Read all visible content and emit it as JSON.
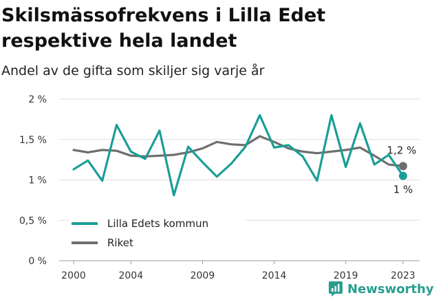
{
  "header": {
    "title": "Skilsmässofrekvens i Lilla Edet respektive hela landet",
    "subtitle": "Andel av de gifta som skiljer sig varje år"
  },
  "brand": {
    "name": "Newsworthy",
    "icon": "newsworthy-logo-icon"
  },
  "colors": {
    "lilla_edet": "#1a9e96",
    "riket": "#6e6e6e",
    "grid": "#dddddd",
    "brand": "#2a9d8f"
  },
  "chart_data": {
    "type": "line",
    "title": "Skilsmässofrekvens i Lilla Edet respektive hela landet",
    "subtitle": "Andel av de gifta som skiljer sig varje år",
    "xlabel": "",
    "ylabel": "",
    "x_ticks": [
      2000,
      2004,
      2009,
      2014,
      2019,
      2023
    ],
    "y_ticks": [
      0,
      0.5,
      1,
      1.5,
      2
    ],
    "y_tick_labels": [
      "0 %",
      "0,5 %",
      "1 %",
      "1,5 %",
      "2 %"
    ],
    "ylim": [
      0,
      2
    ],
    "xlim": [
      2000,
      2023
    ],
    "grid": true,
    "legend_position": "bottom-left",
    "x": [
      2000,
      2001,
      2002,
      2003,
      2004,
      2005,
      2006,
      2007,
      2008,
      2009,
      2010,
      2011,
      2012,
      2013,
      2014,
      2015,
      2016,
      2017,
      2018,
      2019,
      2020,
      2021,
      2022,
      2023
    ],
    "series": [
      {
        "name": "Lilla Edets kommun",
        "color": "#1a9e96",
        "values": [
          1.13,
          1.24,
          0.99,
          1.68,
          1.35,
          1.26,
          1.61,
          0.81,
          1.41,
          1.22,
          1.04,
          1.2,
          1.41,
          1.8,
          1.4,
          1.43,
          1.29,
          0.99,
          1.8,
          1.16,
          1.7,
          1.19,
          1.31,
          1.05
        ],
        "end_label": "1 %"
      },
      {
        "name": "Riket",
        "color": "#6e6e6e",
        "values": [
          1.37,
          1.34,
          1.37,
          1.36,
          1.3,
          1.29,
          1.3,
          1.31,
          1.34,
          1.39,
          1.47,
          1.44,
          1.43,
          1.54,
          1.47,
          1.39,
          1.35,
          1.33,
          1.35,
          1.37,
          1.4,
          1.3,
          1.19,
          1.17
        ],
        "end_label": "1,2 %"
      }
    ]
  }
}
